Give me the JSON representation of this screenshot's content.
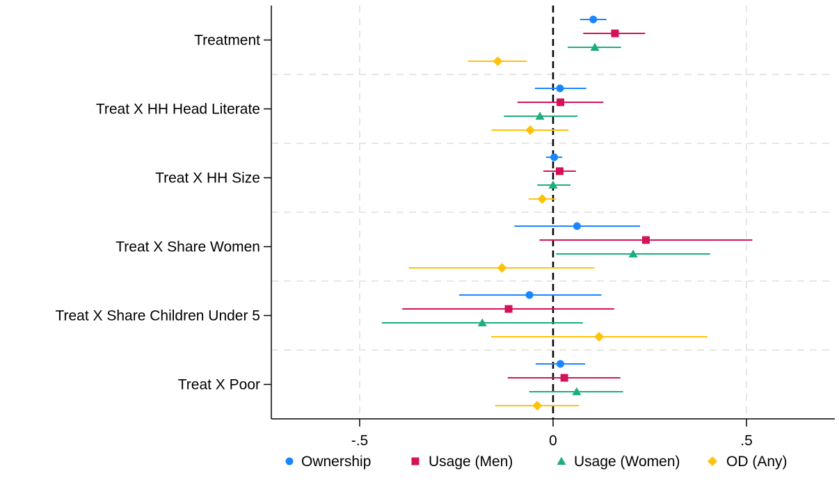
{
  "chart_data": {
    "type": "scatter",
    "subtype": "coefficient-plot",
    "orientation": "horizontal",
    "title": "",
    "xlabel": "",
    "ylabel": "",
    "xlim": [
      -0.73,
      0.73
    ],
    "xticks": [
      -0.5,
      0,
      0.5
    ],
    "xtick_labels": [
      "-.5",
      "0",
      ".5"
    ],
    "reference_line": 0,
    "grid": true,
    "legend_position": "bottom",
    "categories": [
      "Treatment",
      "Treat X HH Head Literate",
      "Treat X HH Size",
      "Treat X Share Women",
      "Treat X Share Children Under 5",
      "Treat X Poor"
    ],
    "series": [
      {
        "name": "Ownership",
        "color": "#1a85ff",
        "marker": "circle",
        "estimates": [
          0.104,
          0.018,
          0.003,
          0.062,
          -0.061,
          0.019
        ],
        "ci_low": [
          0.07,
          -0.047,
          -0.018,
          -0.1,
          -0.243,
          -0.045
        ],
        "ci_high": [
          0.138,
          0.086,
          0.024,
          0.225,
          0.125,
          0.083
        ]
      },
      {
        "name": "Usage (Men)",
        "color": "#d41159",
        "marker": "square",
        "estimates": [
          0.16,
          0.019,
          0.017,
          0.24,
          -0.115,
          0.029
        ],
        "ci_low": [
          0.078,
          -0.092,
          -0.025,
          -0.035,
          -0.39,
          -0.117
        ],
        "ci_high": [
          0.238,
          0.13,
          0.059,
          0.515,
          0.158,
          0.174
        ]
      },
      {
        "name": "Usage (Women)",
        "color": "#1aaf7b",
        "marker": "triangle",
        "estimates": [
          0.108,
          -0.034,
          0.0,
          0.207,
          -0.183,
          0.061
        ],
        "ci_low": [
          0.038,
          -0.127,
          -0.041,
          0.008,
          -0.443,
          -0.062
        ],
        "ci_high": [
          0.176,
          0.063,
          0.045,
          0.406,
          0.077,
          0.181
        ]
      },
      {
        "name": "OD (Any)",
        "color": "#ffc20a",
        "marker": "diamond",
        "estimates": [
          -0.143,
          -0.059,
          -0.028,
          -0.132,
          0.119,
          -0.041
        ],
        "ci_low": [
          -0.22,
          -0.159,
          -0.063,
          -0.373,
          -0.16,
          -0.15
        ],
        "ci_high": [
          -0.068,
          0.04,
          0.007,
          0.107,
          0.399,
          0.067
        ]
      }
    ]
  }
}
